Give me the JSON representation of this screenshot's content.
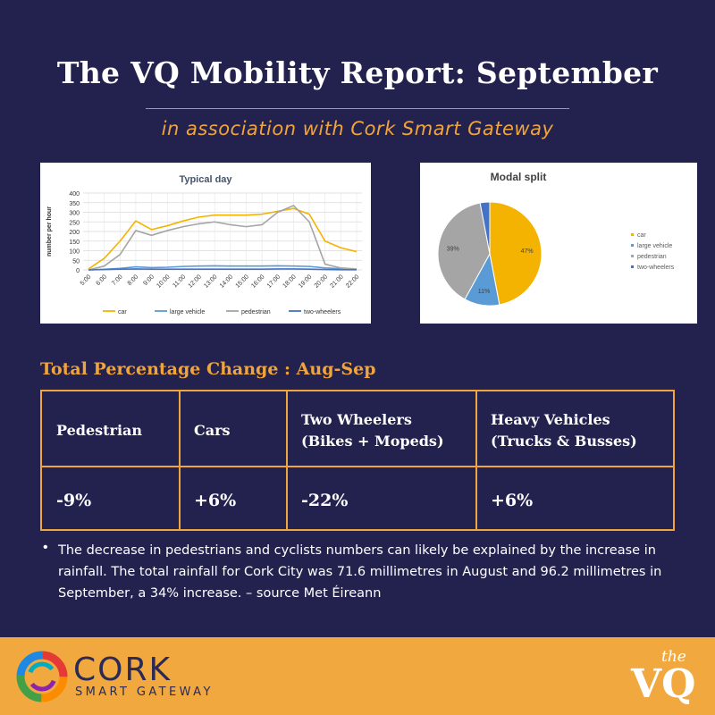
{
  "header": {
    "title": "The VQ Mobility Report: September",
    "subtitle": "in association with Cork Smart Gateway"
  },
  "chart_data": [
    {
      "type": "line",
      "title": "Typical day",
      "ylabel": "number per hour",
      "xlabel": "",
      "ylim": [
        0,
        400
      ],
      "yticks": [
        0,
        50,
        100,
        150,
        200,
        250,
        300,
        350,
        400
      ],
      "categories": [
        "5:00",
        "6:00",
        "7:00",
        "8:00",
        "9:00",
        "10:00",
        "11:00",
        "12:00",
        "13:00",
        "14:00",
        "15:00",
        "16:00",
        "17:00",
        "18:00",
        "19:00",
        "20:00",
        "21:00",
        "22:00"
      ],
      "legend_position": "bottom",
      "grid": true,
      "series": [
        {
          "name": "car",
          "color": "#f5b301",
          "values": [
            5,
            60,
            150,
            255,
            210,
            230,
            255,
            275,
            285,
            285,
            285,
            290,
            305,
            320,
            290,
            150,
            115,
            95
          ]
        },
        {
          "name": "large vehicle",
          "color": "#5b9bd5",
          "values": [
            0,
            3,
            8,
            16,
            12,
            14,
            18,
            20,
            21,
            20,
            20,
            20,
            21,
            20,
            18,
            10,
            6,
            4
          ]
        },
        {
          "name": "pedestrian",
          "color": "#a5a5a5",
          "values": [
            0,
            20,
            80,
            205,
            180,
            205,
            225,
            240,
            250,
            235,
            225,
            235,
            300,
            335,
            250,
            30,
            10,
            5
          ]
        },
        {
          "name": "two-wheelers",
          "color": "#4472c4",
          "values": [
            0,
            2,
            4,
            5,
            4,
            4,
            4,
            4,
            4,
            4,
            4,
            4,
            5,
            5,
            4,
            2,
            1,
            1
          ]
        }
      ]
    },
    {
      "type": "pie",
      "title": "Modal split",
      "legend_position": "right",
      "slices": [
        {
          "name": "car",
          "value": 47,
          "label": "47%",
          "color": "#f5b301"
        },
        {
          "name": "large vehicle",
          "value": 11,
          "label": "11%",
          "color": "#5b9bd5"
        },
        {
          "name": "pedestrian",
          "value": 39,
          "label": "39%",
          "color": "#a5a5a5"
        },
        {
          "name": "two-wheelers",
          "value": 3,
          "label": "",
          "color": "#4472c4"
        }
      ]
    }
  ],
  "table": {
    "heading": "Total Percentage Change : Aug-Sep",
    "border_color": "#f0a43c",
    "headers": [
      [
        "Pedestrian"
      ],
      [
        "Cars"
      ],
      [
        "Two Wheelers",
        "(Bikes + Mopeds)"
      ],
      [
        "Heavy Vehicles",
        "(Trucks & Busses)"
      ]
    ],
    "values": [
      "-9%",
      "+6%",
      "-22%",
      "+6%"
    ]
  },
  "note": {
    "bullet": "•",
    "text": "The decrease in pedestrians and cyclists numbers can likely be explained by the increase in rainfall. The total rainfall for Cork City was 71.6 millimetres in August and 96.2 millimetres in September, a 34% increase. – source Met Éireann"
  },
  "footer": {
    "background": "#f1a93f",
    "logo_left_word": "CORK",
    "logo_left_sub": "SMART GATEWAY",
    "logo_right_top": "the",
    "logo_right_main": "VQ"
  }
}
